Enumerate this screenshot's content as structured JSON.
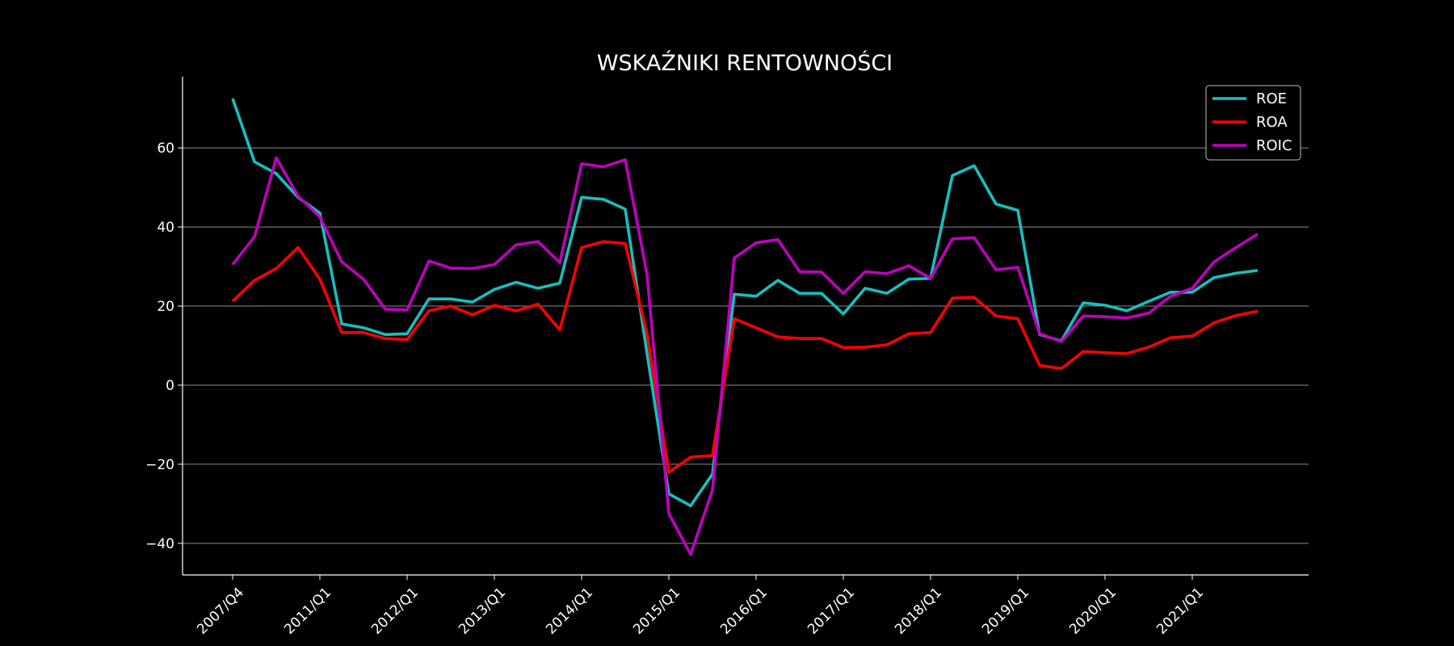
{
  "chart_data": {
    "type": "line",
    "title": "WSKAŹNIKI RENTOWNOŚCI",
    "xlabel": "",
    "ylabel": "",
    "ylim": [
      -48,
      78
    ],
    "yticks": [
      -40,
      -20,
      0,
      20,
      40,
      60
    ],
    "ytick_labels": [
      "−40",
      "−20",
      "0",
      "20",
      "40",
      "60"
    ],
    "grid": "horizontal",
    "legend_position": "top-right",
    "x_tick_labels": [
      {
        "index": 0,
        "label": "2007/Q4"
      },
      {
        "index": 4,
        "label": "2011/Q1"
      },
      {
        "index": 8,
        "label": "2012/Q1"
      },
      {
        "index": 12,
        "label": "2013/Q1"
      },
      {
        "index": 16,
        "label": "2014/Q1"
      },
      {
        "index": 20,
        "label": "2015/Q1"
      },
      {
        "index": 24,
        "label": "2016/Q1"
      },
      {
        "index": 28,
        "label": "2017/Q1"
      },
      {
        "index": 32,
        "label": "2018/Q1"
      },
      {
        "index": 36,
        "label": "2019/Q1"
      },
      {
        "index": 40,
        "label": "2020/Q1"
      },
      {
        "index": 44,
        "label": "2021/Q1"
      }
    ],
    "series": [
      {
        "name": "ROE",
        "color": "#17bfbf",
        "values": [
          72.5,
          56.5,
          53.5,
          47.5,
          43.5,
          15.5,
          14.5,
          12.8,
          13.0,
          21.8,
          21.8,
          21.0,
          24.2,
          26.0,
          24.5,
          25.8,
          47.5,
          47.0,
          44.5,
          8.0,
          -27.5,
          -30.5,
          -22.5,
          23.0,
          22.5,
          26.5,
          23.2,
          23.2,
          18.0,
          24.5,
          23.2,
          26.8,
          27.0,
          53.0,
          55.5,
          45.8,
          44.2,
          12.8,
          11.2,
          20.8,
          20.2,
          18.8,
          21.2,
          23.5,
          23.5,
          27.2,
          28.3,
          29.0
        ]
      },
      {
        "name": "ROA",
        "color": "#ff0000",
        "values": [
          21.2,
          26.5,
          29.5,
          34.8,
          26.8,
          13.3,
          13.3,
          11.8,
          11.5,
          18.8,
          20.0,
          17.8,
          20.2,
          18.8,
          20.5,
          14.0,
          34.8,
          36.3,
          35.8,
          13.0,
          -22.0,
          -18.2,
          -17.8,
          16.8,
          14.5,
          12.2,
          11.8,
          11.8,
          9.5,
          9.6,
          10.2,
          13.0,
          13.3,
          22.0,
          22.2,
          17.5,
          16.8,
          5.0,
          4.2,
          8.5,
          8.2,
          8.0,
          9.6,
          12.0,
          12.4,
          15.8,
          17.6,
          18.7
        ]
      },
      {
        "name": "ROIC",
        "color": "#bf00bf",
        "values": [
          30.5,
          37.5,
          57.5,
          47.8,
          42.5,
          31.2,
          26.8,
          19.2,
          19.0,
          31.4,
          29.6,
          29.5,
          30.5,
          35.5,
          36.3,
          31.0,
          56.0,
          55.2,
          57.0,
          28.0,
          -32.5,
          -42.8,
          -26.5,
          32.2,
          36.0,
          36.8,
          28.7,
          28.6,
          23.2,
          28.7,
          28.2,
          30.2,
          27.0,
          37.0,
          37.3,
          29.2,
          29.8,
          13.0,
          11.0,
          17.5,
          17.3,
          17.0,
          18.2,
          22.5,
          24.5,
          31.2,
          34.8,
          38.2
        ]
      }
    ]
  }
}
